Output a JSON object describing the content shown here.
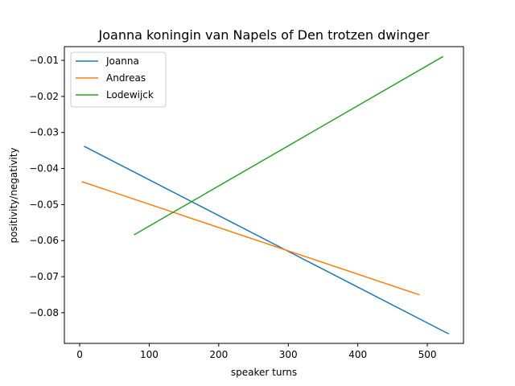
{
  "chart_data": {
    "type": "line",
    "title": "Joanna koningin van Napels of Den trotzen dwinger",
    "xlabel": "speaker turns",
    "ylabel": "positivity/negativity",
    "xlim": [
      -22,
      552
    ],
    "ylim": [
      -0.0885,
      -0.0062
    ],
    "xticks": [
      0,
      100,
      200,
      300,
      400,
      500
    ],
    "yticks": [
      -0.08,
      -0.07,
      -0.06,
      -0.05,
      -0.04,
      -0.03,
      -0.02,
      -0.01
    ],
    "xtick_labels": [
      "0",
      "100",
      "200",
      "300",
      "400",
      "500"
    ],
    "ytick_labels": [
      "−0.08",
      "−0.07",
      "−0.06",
      "−0.05",
      "−0.04",
      "−0.03",
      "−0.02",
      "−0.01"
    ],
    "grid": false,
    "legend_position": "top-left",
    "series": [
      {
        "name": "Joanna",
        "color": "#1f77b4",
        "x": [
          7,
          530
        ],
        "y": [
          -0.0339,
          -0.0858
        ]
      },
      {
        "name": "Andreas",
        "color": "#ff7f0e",
        "x": [
          4,
          488
        ],
        "y": [
          -0.0437,
          -0.075
        ]
      },
      {
        "name": "Lodewijck",
        "color": "#2ca02c",
        "x": [
          79,
          522
        ],
        "y": [
          -0.0583,
          -0.009
        ]
      }
    ]
  }
}
